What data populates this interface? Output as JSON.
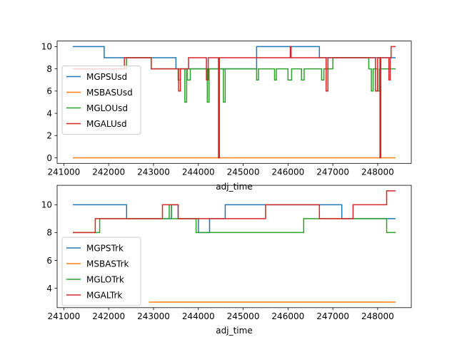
{
  "chart_data": [
    {
      "type": "line",
      "step": true,
      "xlabel": "adj_time",
      "ylabel": "",
      "xlim": [
        240850,
        248750
      ],
      "ylim": [
        -0.5,
        10.5
      ],
      "x_ticks": [
        241000,
        242000,
        243000,
        244000,
        245000,
        246000,
        247000,
        248000
      ],
      "y_ticks": [
        0,
        2,
        4,
        6,
        8,
        10
      ],
      "grid": false,
      "legend_position": "center-left",
      "series": [
        {
          "name": "MGPSUsd",
          "color": "#1f77b4",
          "points": [
            [
              241200,
              10
            ],
            [
              241900,
              10
            ],
            [
              241900,
              9
            ],
            [
              243500,
              9
            ],
            [
              243500,
              8
            ],
            [
              245300,
              8
            ],
            [
              245300,
              10
            ],
            [
              246700,
              10
            ],
            [
              246700,
              9
            ],
            [
              248400,
              9
            ]
          ]
        },
        {
          "name": "MSBASUsd",
          "color": "#ff7f0e",
          "points": [
            [
              241200,
              0
            ],
            [
              248400,
              0
            ]
          ]
        },
        {
          "name": "MGLOUsd",
          "color": "#2ca02c",
          "points": [
            [
              241200,
              8
            ],
            [
              242400,
              8
            ],
            [
              242400,
              9
            ],
            [
              242950,
              9
            ],
            [
              242950,
              8
            ],
            [
              243550,
              8
            ],
            [
              243550,
              7
            ],
            [
              243600,
              7
            ],
            [
              243600,
              8
            ],
            [
              243700,
              8
            ],
            [
              243700,
              5
            ],
            [
              243740,
              5
            ],
            [
              243740,
              8
            ],
            [
              243750,
              8
            ],
            [
              243750,
              7
            ],
            [
              243820,
              7
            ],
            [
              243820,
              8
            ],
            [
              244200,
              8
            ],
            [
              244200,
              5
            ],
            [
              244240,
              5
            ],
            [
              244240,
              8
            ],
            [
              244560,
              8
            ],
            [
              244560,
              5
            ],
            [
              244600,
              5
            ],
            [
              244600,
              8
            ],
            [
              245300,
              8
            ],
            [
              245300,
              7
            ],
            [
              245340,
              7
            ],
            [
              245340,
              8
            ],
            [
              245700,
              8
            ],
            [
              245700,
              7
            ],
            [
              245740,
              7
            ],
            [
              245740,
              8
            ],
            [
              246000,
              8
            ],
            [
              246000,
              7
            ],
            [
              246080,
              7
            ],
            [
              246080,
              8
            ],
            [
              246300,
              8
            ],
            [
              246300,
              7
            ],
            [
              246360,
              7
            ],
            [
              246360,
              8
            ],
            [
              246750,
              8
            ],
            [
              246750,
              7
            ],
            [
              246800,
              7
            ],
            [
              246800,
              8
            ],
            [
              247000,
              8
            ],
            [
              247000,
              9
            ],
            [
              247800,
              9
            ],
            [
              247800,
              8
            ],
            [
              247860,
              8
            ],
            [
              247860,
              6
            ],
            [
              247900,
              6
            ],
            [
              247900,
              8
            ],
            [
              248000,
              8
            ],
            [
              248000,
              6
            ],
            [
              248040,
              6
            ],
            [
              248040,
              8
            ],
            [
              248400,
              8
            ]
          ]
        },
        {
          "name": "MGALUsd",
          "color": "#d62728",
          "points": [
            [
              241200,
              8
            ],
            [
              242350,
              8
            ],
            [
              242350,
              9
            ],
            [
              242950,
              9
            ],
            [
              242950,
              8
            ],
            [
              243560,
              8
            ],
            [
              243560,
              6
            ],
            [
              243600,
              6
            ],
            [
              243600,
              8
            ],
            [
              243780,
              8
            ],
            [
              243780,
              9
            ],
            [
              244180,
              9
            ],
            [
              244180,
              7
            ],
            [
              244220,
              7
            ],
            [
              244220,
              9
            ],
            [
              244450,
              9
            ],
            [
              244450,
              0
            ],
            [
              244470,
              0
            ],
            [
              244470,
              9
            ],
            [
              246050,
              9
            ],
            [
              246050,
              10
            ],
            [
              246070,
              10
            ],
            [
              246070,
              9
            ],
            [
              246850,
              9
            ],
            [
              246850,
              6
            ],
            [
              246890,
              6
            ],
            [
              246890,
              9
            ],
            [
              247950,
              9
            ],
            [
              247950,
              6
            ],
            [
              248000,
              6
            ],
            [
              248000,
              9
            ],
            [
              248050,
              9
            ],
            [
              248050,
              0
            ],
            [
              248070,
              0
            ],
            [
              248070,
              9
            ],
            [
              248250,
              9
            ],
            [
              248250,
              7
            ],
            [
              248280,
              7
            ],
            [
              248280,
              9
            ],
            [
              248300,
              9
            ],
            [
              248300,
              10
            ],
            [
              248400,
              10
            ]
          ]
        }
      ]
    },
    {
      "type": "line",
      "step": true,
      "xlabel": "adj_time",
      "ylabel": "",
      "xlim": [
        240850,
        248750
      ],
      "ylim": [
        2.6,
        11.4
      ],
      "x_ticks": [
        241000,
        242000,
        243000,
        244000,
        245000,
        246000,
        247000,
        248000
      ],
      "y_ticks": [
        4,
        6,
        8,
        10
      ],
      "grid": false,
      "legend_position": "lower-left",
      "series": [
        {
          "name": "MGPSTrk",
          "color": "#1f77b4",
          "points": [
            [
              241200,
              10
            ],
            [
              242400,
              10
            ],
            [
              242400,
              9
            ],
            [
              243400,
              9
            ],
            [
              243400,
              10
            ],
            [
              243550,
              10
            ],
            [
              243550,
              9
            ],
            [
              244000,
              9
            ],
            [
              244000,
              8
            ],
            [
              244250,
              8
            ],
            [
              244250,
              9
            ],
            [
              244600,
              9
            ],
            [
              244600,
              10
            ],
            [
              247200,
              10
            ],
            [
              247200,
              9
            ],
            [
              248400,
              9
            ]
          ]
        },
        {
          "name": "MSBASTrk",
          "color": "#ff7f0e",
          "points": [
            [
              242900,
              3
            ],
            [
              248400,
              3
            ]
          ]
        },
        {
          "name": "MGLOTrk",
          "color": "#2ca02c",
          "points": [
            [
              241200,
              8
            ],
            [
              241800,
              8
            ],
            [
              241800,
              9
            ],
            [
              243350,
              9
            ],
            [
              243350,
              10
            ],
            [
              243400,
              10
            ],
            [
              243400,
              9
            ],
            [
              243950,
              9
            ],
            [
              243950,
              8
            ],
            [
              246350,
              8
            ],
            [
              246350,
              9
            ],
            [
              248200,
              9
            ],
            [
              248200,
              8
            ],
            [
              248400,
              8
            ]
          ]
        },
        {
          "name": "MGALTrk",
          "color": "#d62728",
          "points": [
            [
              241200,
              8
            ],
            [
              241700,
              8
            ],
            [
              241700,
              9
            ],
            [
              243200,
              9
            ],
            [
              243200,
              10
            ],
            [
              243550,
              10
            ],
            [
              243550,
              9
            ],
            [
              245500,
              9
            ],
            [
              245500,
              10
            ],
            [
              246700,
              10
            ],
            [
              246700,
              9
            ],
            [
              247450,
              9
            ],
            [
              247450,
              10
            ],
            [
              248200,
              10
            ],
            [
              248200,
              11
            ],
            [
              248400,
              11
            ]
          ]
        }
      ]
    }
  ]
}
